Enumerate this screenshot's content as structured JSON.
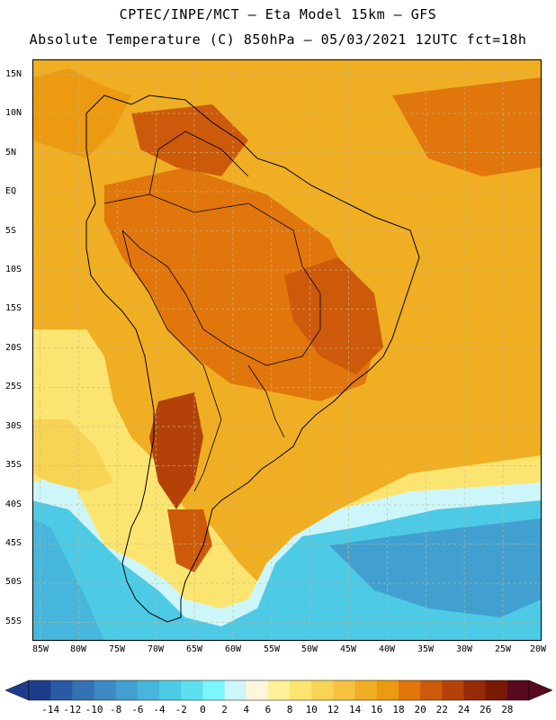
{
  "header": {
    "line1": "CPTEC/INPE/MCT –  Eta Model 15km – GFS",
    "line2": "Absolute Temperature (C) 850hPa – 05/03/2021 12UTC fct=18h"
  },
  "map": {
    "lon_range": [
      -86,
      -20
    ],
    "lat_range": [
      -58,
      16
    ],
    "lat_ticks": [
      "15N",
      "10N",
      "5N",
      "EQ",
      "5S",
      "10S",
      "15S",
      "20S",
      "25S",
      "30S",
      "35S",
      "40S",
      "45S",
      "50S",
      "55S"
    ],
    "lon_ticks": [
      "85W",
      "80W",
      "75W",
      "70W",
      "65W",
      "60W",
      "55W",
      "50W",
      "45W",
      "40W",
      "35W",
      "30W",
      "25W",
      "20W"
    ],
    "gridlines": "dashed",
    "field": "temperature 850hPa"
  },
  "colorbar": {
    "labels": [
      "-14",
      "-12",
      "-10",
      "-8",
      "-6",
      "-4",
      "-2",
      "0",
      "2",
      "4",
      "6",
      "8",
      "10",
      "12",
      "14",
      "16",
      "18",
      "20",
      "22",
      "24",
      "26",
      "28"
    ],
    "colors": [
      "#1e3c8c",
      "#2a5aa6",
      "#3572b4",
      "#3c8ac4",
      "#41a0d0",
      "#46b6dc",
      "#4dcae6",
      "#5ce0f0",
      "#7af6fc",
      "#cdf6fa",
      "#fff6dc",
      "#fff09a",
      "#fce470",
      "#f8d454",
      "#f4c23e",
      "#f0ae22",
      "#ec9a10",
      "#e0760c",
      "#cc5a0a",
      "#b44208",
      "#962a06",
      "#781a04",
      "#5a0a1e"
    ]
  }
}
